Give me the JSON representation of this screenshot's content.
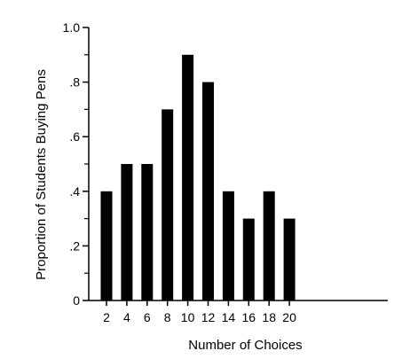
{
  "chart_data": {
    "type": "bar",
    "title": "",
    "xlabel": "Number of Choices",
    "ylabel": "Proportion of Students Buying Pens",
    "categories": [
      "2",
      "4",
      "6",
      "8",
      "10",
      "12",
      "14",
      "16",
      "18",
      "20"
    ],
    "values": [
      0.4,
      0.5,
      0.5,
      0.7,
      0.9,
      0.8,
      0.4,
      0.3,
      0.4,
      0.3
    ],
    "ylim": [
      0,
      1.0
    ],
    "y_ticks": [
      0,
      0.2,
      0.4,
      0.6,
      0.8,
      1.0
    ],
    "y_tick_labels": [
      "0",
      ".2",
      ".4",
      ".6",
      ".8",
      "1.0"
    ],
    "grid": false,
    "legend": "none",
    "bar_color": "#000000",
    "axis_color": "#000000"
  }
}
